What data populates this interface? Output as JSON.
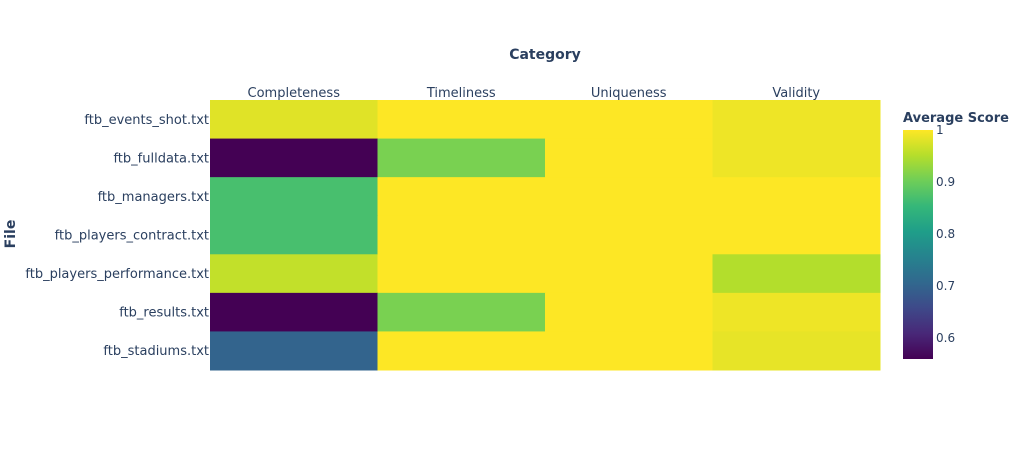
{
  "chart_data": {
    "type": "heatmap",
    "xlabel": "Category",
    "ylabel": "File",
    "x_axis_side": "top",
    "categories": [
      "Completeness",
      "Timeliness",
      "Uniqueness",
      "Validity"
    ],
    "rows": [
      "ftb_events_shot.txt",
      "ftb_fulldata.txt",
      "ftb_managers.txt",
      "ftb_players_contract.txt",
      "ftb_players_performance.txt",
      "ftb_results.txt",
      "ftb_stadiums.txt"
    ],
    "values": [
      [
        0.98,
        1.0,
        1.0,
        0.99
      ],
      [
        0.56,
        0.91,
        1.0,
        0.99
      ],
      [
        0.87,
        1.0,
        1.0,
        1.0
      ],
      [
        0.87,
        1.0,
        1.0,
        1.0
      ],
      [
        0.96,
        1.0,
        1.0,
        0.95
      ],
      [
        0.56,
        0.91,
        1.0,
        0.99
      ],
      [
        0.7,
        1.0,
        1.0,
        0.985
      ]
    ],
    "colorbar": {
      "title": "Average Score",
      "range": [
        0.56,
        1.0
      ],
      "ticks": [
        0.6,
        0.7,
        0.8,
        0.9,
        1
      ],
      "tick_labels": [
        "0.6",
        "0.7",
        "0.8",
        "0.9",
        "1"
      ],
      "colorscale": "Viridis"
    }
  }
}
